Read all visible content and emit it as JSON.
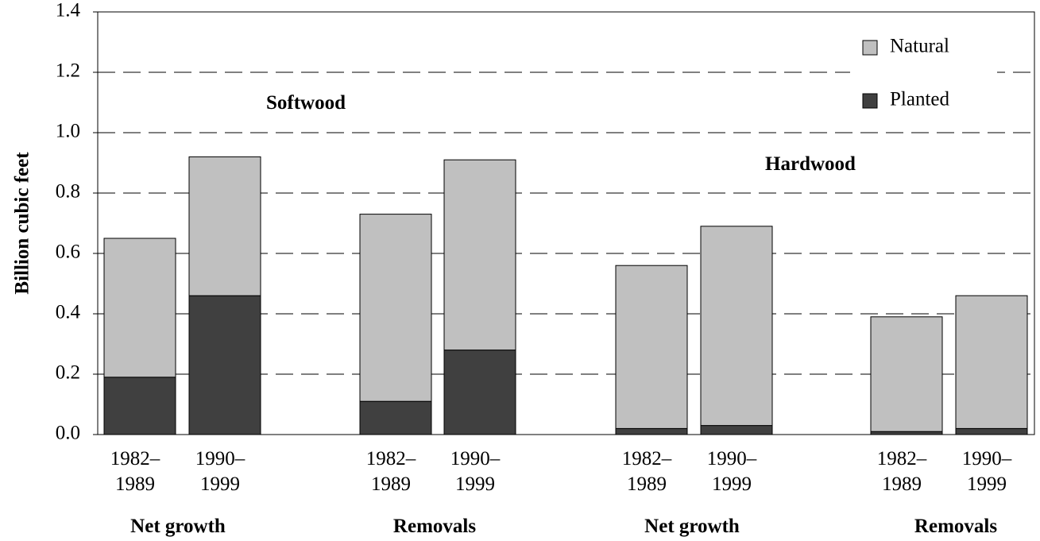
{
  "chart_data": {
    "type": "stacked_bar",
    "y_label": "Billion cubic feet",
    "categories": [
      "1982–\n1989",
      "1990–\n1999",
      "1982–\n1989",
      "1990–\n1999",
      "1982–\n1989",
      "1990–\n1999",
      "1982–\n1989",
      "1990–\n1999"
    ],
    "group_labels": [
      "Net growth",
      "Removals",
      "Net growth",
      "Removals"
    ],
    "annotations": [
      "Softwood",
      "Hardwood"
    ],
    "series": [
      {
        "name": "Natural",
        "color": "#c0c0c0",
        "values": [
          0.46,
          0.46,
          0.62,
          0.63,
          0.54,
          0.66,
          0.38,
          0.44
        ]
      },
      {
        "name": "Planted",
        "color": "#404040",
        "values": [
          0.19,
          0.46,
          0.11,
          0.28,
          0.02,
          0.03,
          0.01,
          0.02
        ]
      }
    ],
    "ylim": [
      0,
      1.4
    ],
    "yticks": [
      {
        "value": 0,
        "label": "0.0"
      },
      0.2,
      0.4,
      0.6,
      0.8,
      {
        "value": 1,
        "label": "1.0"
      },
      1.2,
      1.4
    ],
    "grid": true,
    "legend": "top-right"
  }
}
